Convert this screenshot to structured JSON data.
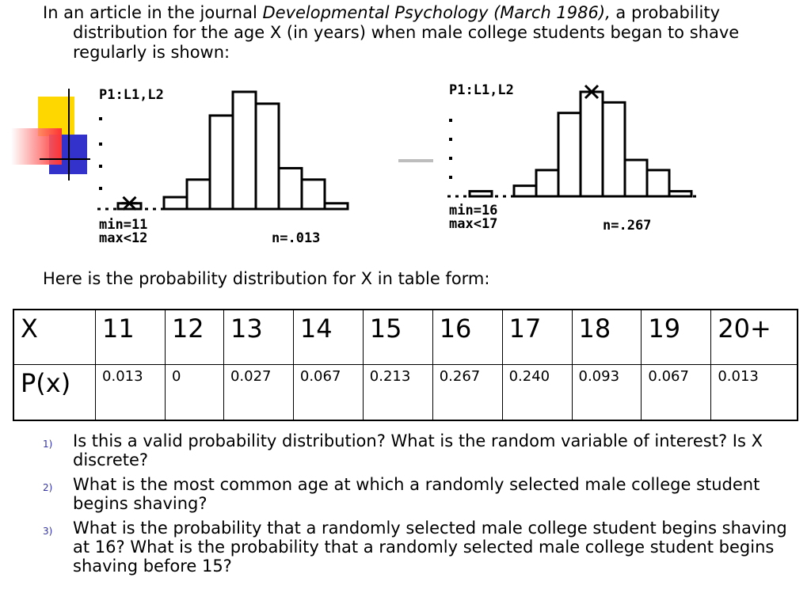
{
  "intro": {
    "prefix": "In an article in the journal ",
    "journal": "Developmental Psychology (March 1986),",
    "suffix": " a probability distribution for the age X (in years) when male college students began to shave regularly is shown:"
  },
  "calc_screens": [
    {
      "header": "P1:L1,L2",
      "stat_line1": "min=11",
      "stat_line2": "max<12",
      "n_label": "n=.013",
      "bar_heights": [
        0.013,
        0.0,
        0.027,
        0.067,
        0.213,
        0.267,
        0.24,
        0.093,
        0.067,
        0.013
      ],
      "highlighted_bar": 0
    },
    {
      "header": "P1:L1,L2",
      "stat_line1": "min=16",
      "stat_line2": "max<17",
      "n_label": "n=.267",
      "bar_heights": [
        0.013,
        0.0,
        0.027,
        0.067,
        0.213,
        0.267,
        0.24,
        0.093,
        0.067,
        0.013
      ],
      "highlighted_bar": 5
    }
  ],
  "subheading": "Here is the probability distribution for X in table form:",
  "table": {
    "header_label": "X",
    "values": [
      "11",
      "12",
      "13",
      "14",
      "15",
      "16",
      "17",
      "18",
      "19",
      "20+"
    ],
    "row_label": "P(x)",
    "probabilities": [
      "0.013",
      "0",
      "0.027",
      "0.067",
      "0.213",
      "0.267",
      "0.240",
      "0.093",
      "0.067",
      "0.013"
    ]
  },
  "questions": [
    {
      "number": "1)",
      "text": "Is this a valid probability distribution? What is the random variable of interest? Is X discrete?"
    },
    {
      "number": "2)",
      "text": "What is the most common age at which a randomly selected male college student begins shaving?"
    },
    {
      "number": "3)",
      "text": "What is the probability that a randomly selected male college student begins shaving at 16? What is the probability that a randomly selected male college student begins shaving before 15?"
    }
  ]
}
